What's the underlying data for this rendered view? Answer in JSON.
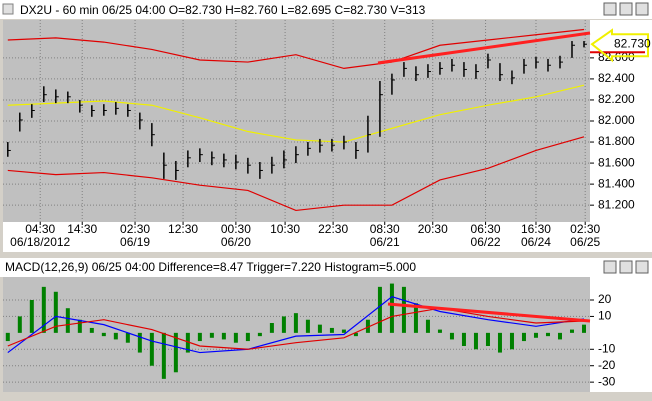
{
  "chart_data": [
    {
      "type": "ohlc",
      "title": "DX2U - 60 min 06/25 04:00 O=82.730 H=82.760 L=82.695 C=82.730 V=313",
      "high": [
        81.8,
        82.08,
        82.16,
        82.33,
        82.3,
        82.28,
        82.2,
        82.15,
        82.16,
        82.18,
        82.16,
        82.08,
        81.98,
        81.7,
        81.62,
        81.72,
        81.74,
        81.71,
        81.69,
        81.68,
        81.65,
        81.61,
        81.66,
        81.72,
        81.76,
        81.8,
        81.83,
        81.83,
        81.86,
        81.8,
        82.05,
        82.38,
        82.45,
        82.56,
        82.52,
        82.54,
        82.56,
        82.59,
        82.56,
        82.54,
        82.64,
        82.55,
        82.48,
        82.59,
        82.61,
        82.59,
        82.62,
        82.76,
        82.76
      ],
      "low": [
        81.66,
        81.9,
        82.03,
        82.18,
        82.17,
        82.17,
        82.08,
        82.04,
        82.05,
        82.06,
        82.04,
        81.92,
        81.76,
        81.45,
        81.44,
        81.56,
        81.61,
        81.58,
        81.56,
        81.54,
        81.5,
        81.45,
        81.5,
        81.55,
        81.6,
        81.67,
        81.7,
        81.71,
        81.73,
        81.64,
        81.7,
        81.85,
        82.25,
        82.42,
        82.38,
        82.41,
        82.44,
        82.47,
        82.42,
        82.4,
        82.5,
        82.38,
        82.35,
        82.45,
        82.5,
        82.47,
        82.5,
        82.6,
        82.7
      ],
      "close": [
        81.72,
        82.01,
        82.1,
        82.25,
        82.23,
        82.23,
        82.15,
        82.1,
        82.1,
        82.12,
        82.1,
        82.01,
        81.87,
        81.58,
        81.53,
        81.65,
        81.68,
        81.65,
        81.63,
        81.61,
        81.58,
        81.53,
        81.58,
        81.63,
        81.68,
        81.74,
        81.77,
        81.77,
        81.8,
        81.72,
        81.87,
        82.25,
        82.39,
        82.5,
        82.44,
        82.47,
        82.5,
        82.53,
        82.49,
        82.47,
        82.58,
        82.44,
        82.41,
        82.53,
        82.56,
        82.53,
        82.56,
        82.72,
        82.73
      ],
      "color": "#000000",
      "overlays": [
        {
          "color": "#e00000",
          "x": [
            0,
            4,
            8,
            12,
            16,
            20,
            24,
            28,
            32,
            36,
            40,
            44,
            48
          ],
          "values": [
            82.77,
            82.79,
            82.75,
            82.68,
            82.58,
            82.56,
            82.63,
            82.5,
            82.56,
            82.72,
            82.77,
            82.82,
            82.87
          ]
        },
        {
          "color": "#e00000",
          "x": [
            0,
            4,
            8,
            12,
            16,
            20,
            24,
            28,
            32,
            36,
            40,
            44,
            48
          ],
          "values": [
            81.53,
            81.49,
            81.51,
            81.46,
            81.39,
            81.34,
            81.15,
            81.2,
            81.2,
            81.44,
            81.55,
            81.72,
            81.85
          ]
        },
        {
          "color": "#f0f000",
          "x": [
            0,
            4,
            8,
            12,
            16,
            20,
            24,
            28,
            32,
            36,
            40,
            44,
            48
          ],
          "values": [
            82.15,
            82.17,
            82.19,
            82.15,
            82.03,
            81.9,
            81.82,
            81.8,
            81.93,
            82.06,
            82.15,
            82.23,
            82.34
          ]
        }
      ],
      "last_price": {
        "value": 82.73,
        "label": "82.730"
      },
      "xlim": [
        -0.4,
        48.5
      ],
      "ylim": [
        81.04,
        82.96
      ],
      "yticks": [
        {
          "value": 81.2,
          "label": "81.200"
        },
        {
          "value": 81.4,
          "label": "81.400"
        },
        {
          "value": 81.6,
          "label": "81.600"
        },
        {
          "value": 81.8,
          "label": "81.800"
        },
        {
          "value": 82,
          "label": "82.000"
        },
        {
          "value": 82.2,
          "label": "82.200"
        },
        {
          "value": 82.4,
          "label": "82.400"
        },
        {
          "value": 82.6,
          "label": "82.600"
        }
      ],
      "xticks": [
        {
          "value": 2.7,
          "label": "04:30"
        },
        {
          "value": 6.2,
          "label": "14:30"
        },
        {
          "value": 10.6,
          "label": "02:30"
        },
        {
          "value": 14.6,
          "label": "12:30"
        },
        {
          "value": 19,
          "label": "00:30"
        },
        {
          "value": 23.1,
          "label": "10:30"
        },
        {
          "value": 27.1,
          "label": "22:30"
        },
        {
          "value": 31.4,
          "label": "08:30"
        },
        {
          "value": 35.4,
          "label": "20:30"
        },
        {
          "value": 39.8,
          "label": "06:30"
        },
        {
          "value": 44,
          "label": "16:30"
        },
        {
          "value": 48.1,
          "label": "02:30"
        }
      ],
      "xdates": [
        {
          "value": 2.7,
          "label": "06/18/2012"
        },
        {
          "value": 10.6,
          "label": "06/19"
        },
        {
          "value": 19,
          "label": "06/20"
        },
        {
          "value": 31.4,
          "label": "06/21"
        },
        {
          "value": 39.8,
          "label": "06/22"
        },
        {
          "value": 44,
          "label": "06/24"
        },
        {
          "value": 48.1,
          "label": "06/25"
        }
      ],
      "grid": true
    },
    {
      "type": "macd",
      "title": "MACD(12,26,9) 06/25 04:00 Difference=8.47 Trigger=7.220 Histogram=5.000",
      "values": [
        -5,
        10,
        20,
        28,
        25,
        15,
        8,
        3,
        -2,
        -4,
        -6,
        -12,
        -20,
        -28,
        -24,
        -12,
        -5,
        -3,
        -4,
        -6,
        -5,
        -2,
        6,
        10,
        12,
        8,
        5,
        3,
        2,
        -2,
        8,
        28,
        30,
        28,
        18,
        8,
        2,
        -4,
        -8,
        -10,
        -8,
        -12,
        -10,
        -5,
        -3,
        -2,
        -4,
        2,
        5
      ],
      "color": "#008000",
      "series": [
        {
          "color": "#0000ff",
          "x": [
            0,
            4,
            8,
            12,
            16,
            20,
            24,
            28,
            32,
            36,
            40,
            44,
            48
          ],
          "values": [
            -12,
            10,
            5,
            -5,
            -12,
            -10,
            -2,
            -1,
            22,
            13,
            8,
            4,
            8.47
          ]
        },
        {
          "color": "#e00000",
          "x": [
            0,
            4,
            8,
            12,
            16,
            20,
            24,
            28,
            32,
            36,
            40,
            44,
            48
          ],
          "values": [
            -8,
            4,
            8,
            2,
            -8,
            -10,
            -6,
            -3,
            10,
            15,
            10,
            6,
            7.22
          ]
        }
      ],
      "xlim": [
        -0.4,
        48.5
      ],
      "ylim": [
        -36,
        34
      ],
      "yticks": [
        -30,
        -20,
        -10,
        10,
        20
      ],
      "grid": true
    }
  ]
}
